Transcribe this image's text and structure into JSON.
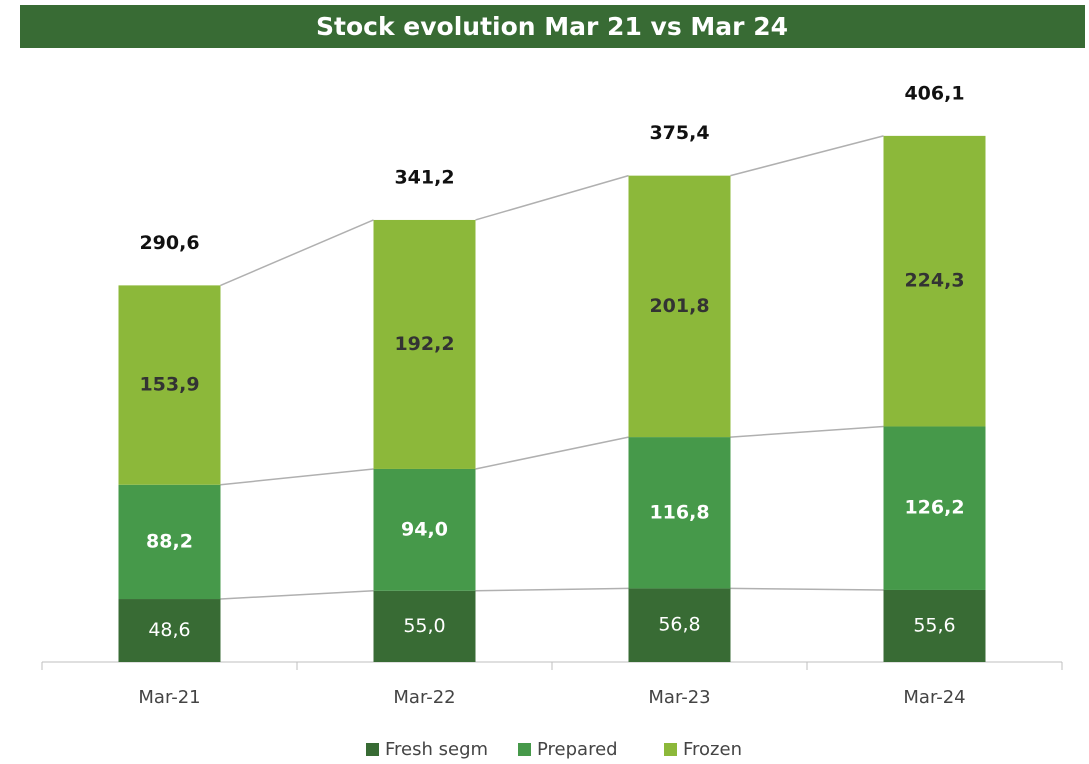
{
  "chart_data": {
    "type": "stacked-bar",
    "title": "Stock evolution Mar 21 vs Mar 24",
    "categories": [
      "Mar-21",
      "Mar-22",
      "Mar-23",
      "Mar-24"
    ],
    "series": [
      {
        "name": "Fresh segm",
        "color": "#386b34",
        "values": [
          48.6,
          55.0,
          56.8,
          55.6
        ],
        "value_labels": [
          "48,6",
          "55,0",
          "56,8",
          "55,6"
        ]
      },
      {
        "name": "Prepared",
        "color": "#46994a",
        "values": [
          88.2,
          94.0,
          116.8,
          126.2
        ],
        "value_labels": [
          "88,2",
          "94,0",
          "116,8",
          "126,2"
        ]
      },
      {
        "name": "Frozen",
        "color": "#8cb83a",
        "values": [
          153.9,
          192.2,
          201.8,
          224.3
        ],
        "value_labels": [
          "153,9",
          "192,2",
          "201,8",
          "224,3"
        ]
      }
    ],
    "totals": [
      290.6,
      341.2,
      375.4,
      406.1
    ],
    "total_labels": [
      "290,6",
      "341,2",
      "375,4",
      "406,1"
    ],
    "ylim": [
      0,
      450
    ],
    "legend": "bottom"
  }
}
